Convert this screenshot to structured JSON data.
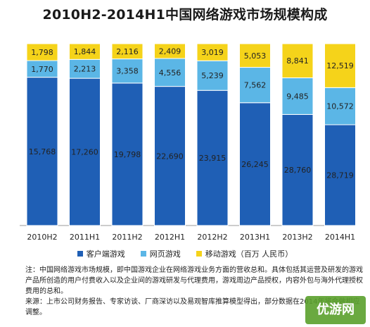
{
  "title": "2010H2-2014H1中国网络游戏市场规模构成",
  "chart_data": {
    "type": "bar",
    "stacked": true,
    "title": "2010H2-2014H1中国网络游戏市场规模构成",
    "unit": "百万 人民币",
    "categories": [
      "2010H2",
      "2011H1",
      "2011H2",
      "2012H1",
      "2012H2",
      "2013H1",
      "2013H2",
      "2014H1"
    ],
    "series": [
      {
        "name": "客户端游戏",
        "color": "#1f5fb5",
        "values": [
          15768,
          17260,
          19798,
          22690,
          23915,
          26245,
          28760,
          28719
        ]
      },
      {
        "name": "网页游戏",
        "color": "#5bb6e6",
        "values": [
          1770,
          2213,
          3358,
          4556,
          5239,
          7562,
          9485,
          10572
        ]
      },
      {
        "name": "移动游戏",
        "color": "#f5d31a",
        "values": [
          1798,
          1844,
          2116,
          2409,
          3019,
          5053,
          8841,
          12519
        ]
      }
    ],
    "value_labels": [
      [
        "15,768",
        "17,260",
        "19,798",
        "22,690",
        "23,915",
        "26,245",
        "28,760",
        "28,719"
      ],
      [
        "1,770",
        "2,213",
        "3,358",
        "4,556",
        "5,239",
        "7,562",
        "9,485",
        "10,572"
      ],
      [
        "1,798",
        "1,844",
        "2,116",
        "2,409",
        "3,019",
        "5,053",
        "8,841",
        "12,519"
      ]
    ],
    "normalized": true,
    "legend_position": "bottom",
    "grid": false
  },
  "legend": [
    {
      "label": "客户端游戏",
      "color": "#1f5fb5"
    },
    {
      "label": "网页游戏",
      "color": "#5bb6e6"
    },
    {
      "label": "移动游戏（百万 人民币）",
      "color": "#f5d31a"
    }
  ],
  "notes": {
    "line1": "注：中国网络游戏市场规模，即中国游戏企业在网络游戏业务方面的营收总和。具体包括其运营及研发的游戏产品所创造的用户付费收入以及企业间的游戏研发与代理费用，游戏周边产品授权，内容外包与海外代理授权费用的总和。",
    "line2": "来源：上市公司财务报告、专家访谈、厂商深访以及易观智库推算模型得出，部分数据在2014年将会做相应调整。"
  },
  "watermark": "优游网"
}
